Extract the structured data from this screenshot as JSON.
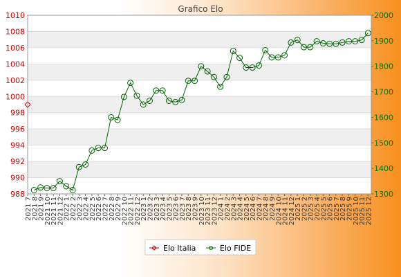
{
  "chart_data": {
    "type": "line",
    "title": "Grafico Elo",
    "categories": [
      "2021 7",
      "2021 8",
      "2021 9",
      "2021 10",
      "2021 11",
      "2021 12",
      "2022 1",
      "2022 2",
      "2022 3",
      "2022 4",
      "2022 5",
      "2022 6",
      "2022 7",
      "2022 8",
      "2022 9",
      "2022 10",
      "2022 11",
      "2022 12",
      "2023 1",
      "2023 2",
      "2023 3",
      "2023 4",
      "2023 5",
      "2023 6",
      "2023 7",
      "2023 8",
      "2023 9",
      "2023 10",
      "2023 11",
      "2023 12",
      "2024 1",
      "2024 2",
      "2024 3",
      "2024 4",
      "2024 5",
      "2024 6",
      "2024 7",
      "2024 8",
      "2024 9",
      "2024 10",
      "2024 11",
      "2024 12",
      "2025 1",
      "2025 2",
      "2025 3",
      "2025 4",
      "2025 5",
      "2025 6",
      "2025 7",
      "2025 8",
      "2025 9",
      "2025 10",
      "2025 11",
      "2025 12"
    ],
    "y_left": {
      "min": 988,
      "max": 1010,
      "ticks": [
        988,
        990,
        992,
        994,
        996,
        998,
        1000,
        1002,
        1004,
        1006,
        1008,
        1010
      ],
      "color": "#cc0000"
    },
    "y_right": {
      "min": 1300,
      "max": 2000,
      "ticks": [
        1300,
        1400,
        1500,
        1600,
        1700,
        1800,
        1900,
        2000
      ],
      "color": "#007700"
    },
    "grid": true,
    "legend_position": "bottom",
    "series": [
      {
        "name": "Elo Italia",
        "axis": "left",
        "color": "#cc0000",
        "marker": "diamond",
        "values": [
          999,
          null,
          null,
          null,
          null,
          null,
          null,
          null,
          null,
          null,
          null,
          null,
          null,
          null,
          null,
          null,
          null,
          null,
          null,
          null,
          null,
          null,
          null,
          null,
          null,
          null,
          null,
          null,
          null,
          null,
          null,
          null,
          null,
          null,
          null,
          null,
          null,
          null,
          null,
          null,
          null,
          null,
          null,
          null,
          null,
          null,
          null,
          null,
          null,
          null,
          null,
          null,
          null,
          null
        ]
      },
      {
        "name": "Elo FIDE",
        "axis": "right",
        "color": "#006600",
        "marker": "circle",
        "values": [
          null,
          1315,
          1325,
          1323,
          1323,
          1350,
          1330,
          1315,
          1405,
          1415,
          1470,
          1480,
          1480,
          1600,
          1590,
          1680,
          1735,
          1685,
          1650,
          1665,
          1705,
          1705,
          1665,
          1660,
          1668,
          1743,
          1743,
          1800,
          1780,
          1758,
          1720,
          1758,
          1860,
          1833,
          1795,
          1795,
          1803,
          1863,
          1835,
          1835,
          1843,
          1893,
          1903,
          1875,
          1875,
          1898,
          1890,
          1888,
          1888,
          1893,
          1898,
          1898,
          1903,
          1930
        ]
      }
    ]
  }
}
